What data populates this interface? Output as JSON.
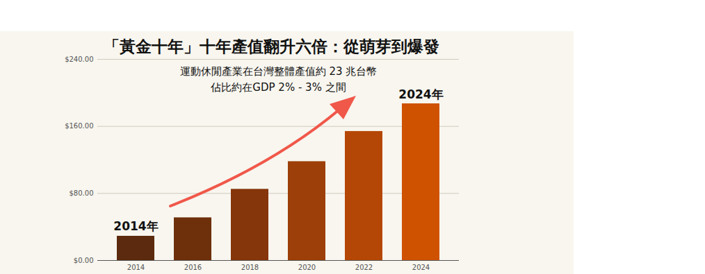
{
  "chart_data": {
    "type": "bar",
    "title": "「黃金十年」十年產值翻升六倍：從萌芽到爆發",
    "annotations": [
      {
        "text": "運動休閒產業在台灣整體產值約 23 兆台幣"
      },
      {
        "text": "佔比約在GDP 2% - 3% 之間"
      },
      {
        "text": "2014年",
        "category": "2014"
      },
      {
        "text": "2024年",
        "category": "2024"
      }
    ],
    "categories": [
      "2014",
      "2016",
      "2018",
      "2020",
      "2022",
      "2024"
    ],
    "values": [
      29,
      51,
      85,
      118,
      154,
      187
    ],
    "colors": [
      "#5c2a0e",
      "#6e300b",
      "#85360a",
      "#9c3f08",
      "#b54706",
      "#cf5200"
    ],
    "ylim": [
      0,
      240
    ],
    "yticks": [
      {
        "value": 0,
        "label": "$0.00"
      },
      {
        "value": 80,
        "label": "$80.00"
      },
      {
        "value": 160,
        "label": "$160.00"
      },
      {
        "value": 240,
        "label": "$240.00"
      }
    ],
    "grid": true
  }
}
